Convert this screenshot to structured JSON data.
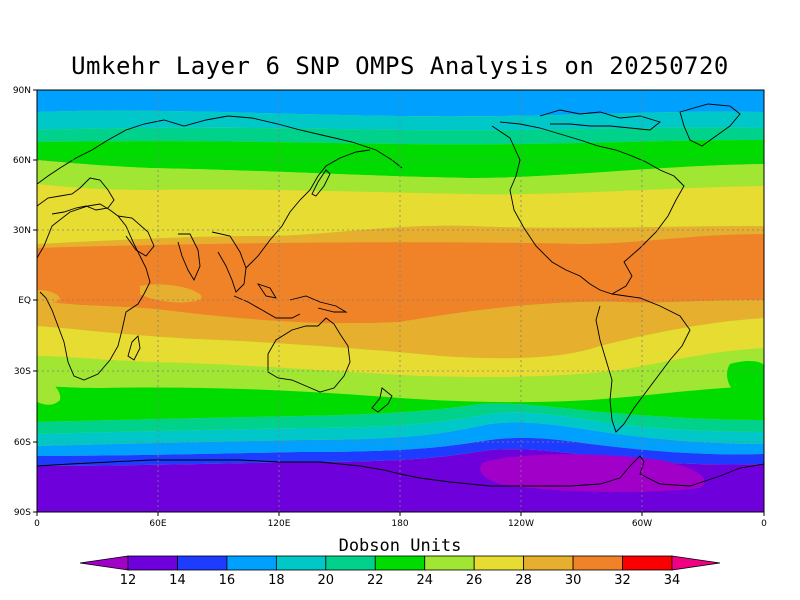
{
  "title": "Umkehr Layer 6 SNP OMPS Analysis on 20250720",
  "colorbar": {
    "title": "Dobson Units",
    "levels": [
      "12",
      "14",
      "16",
      "18",
      "20",
      "22",
      "24",
      "26",
      "28",
      "30",
      "32",
      "34"
    ],
    "colors": [
      "#a000c8",
      "#6e00dc",
      "#1e3cff",
      "#00a0ff",
      "#00c8c8",
      "#00d28c",
      "#00dc00",
      "#a0e632",
      "#e6dc32",
      "#e6af2d",
      "#f08228",
      "#fa0000",
      "#f00082"
    ]
  },
  "axes": {
    "y_ticks": [
      "90N",
      "60N",
      "30N",
      "EQ",
      "30S",
      "60S",
      "90S"
    ],
    "x_ticks": [
      "0",
      "60E",
      "120E",
      "180",
      "120W",
      "60W",
      "0"
    ]
  },
  "chart_data": {
    "type": "heatmap",
    "title": "Umkehr Layer 6 SNP OMPS Analysis on 20250720",
    "colorbar_label": "Dobson Units",
    "lon_range": [
      0,
      360
    ],
    "lat_range": [
      -90,
      90
    ],
    "grid": true,
    "zonal_bands": [
      {
        "lat": [
          80,
          90
        ],
        "value": 17
      },
      {
        "lat": [
          70,
          80
        ],
        "value": 19
      },
      {
        "lat": [
          60,
          70
        ],
        "value": 23
      },
      {
        "lat": [
          50,
          60
        ],
        "value": 25
      },
      {
        "lat": [
          40,
          50
        ],
        "value": 27
      },
      {
        "lat": [
          30,
          40
        ],
        "value": 28
      },
      {
        "lat": [
          20,
          30
        ],
        "value": 30
      },
      {
        "lat": [
          -10,
          20
        ],
        "value": 31
      },
      {
        "lat": [
          -20,
          -10
        ],
        "value": 29
      },
      {
        "lat": [
          -30,
          -20
        ],
        "value": 27
      },
      {
        "lat": [
          -40,
          -30
        ],
        "value": 25
      },
      {
        "lat": [
          -50,
          -40
        ],
        "value": 23
      },
      {
        "lat": [
          -55,
          -50
        ],
        "value": 21
      },
      {
        "lat": [
          -60,
          -55
        ],
        "value": 19
      },
      {
        "lat": [
          -65,
          -60
        ],
        "value": 17
      },
      {
        "lat": [
          -70,
          -65
        ],
        "value": 15
      },
      {
        "lat": [
          -90,
          -70
        ],
        "value": 13
      }
    ]
  }
}
